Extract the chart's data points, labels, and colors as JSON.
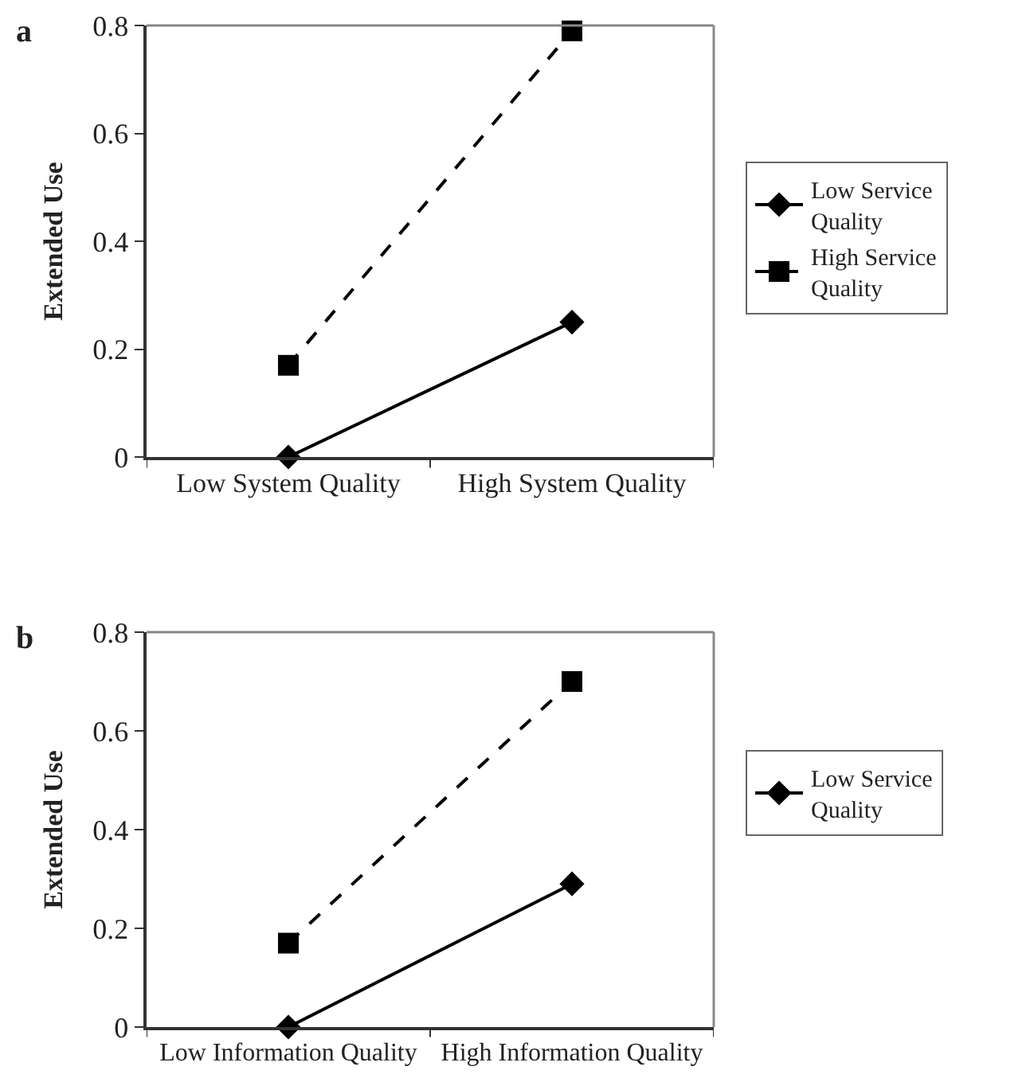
{
  "chart_data": [
    {
      "type": "line",
      "title": "a",
      "ylabel": "Extended Use",
      "categories": [
        "Low System Quality",
        "High System Quality"
      ],
      "ylim": [
        0,
        0.8
      ],
      "yticks": [
        0,
        0.2,
        0.4,
        0.6,
        0.8
      ],
      "grid": false,
      "legend": "right",
      "series": [
        {
          "name": "Low Service Quality",
          "color": "#000000",
          "values": [
            0,
            0.25
          ],
          "marker": "diamond",
          "line_style": "solid"
        },
        {
          "name": "High Service Quality",
          "color": "#000000",
          "values": [
            0.17,
            0.79
          ],
          "marker": "square",
          "line_style": "dashed"
        }
      ]
    },
    {
      "type": "line",
      "title": "b",
      "ylabel": "Extended Use",
      "categories": [
        "Low Information Quality",
        "High Information Quality"
      ],
      "ylim": [
        0,
        0.8
      ],
      "yticks": [
        0,
        0.2,
        0.4,
        0.6,
        0.8
      ],
      "grid": false,
      "legend": "right",
      "series": [
        {
          "name": "Low Service Quality",
          "color": "#000000",
          "values": [
            0,
            0.29
          ],
          "marker": "diamond",
          "line_style": "solid"
        },
        {
          "color": "#000000",
          "values": [
            0.17,
            0.7
          ],
          "marker": "square",
          "line_style": "dashed"
        }
      ]
    }
  ]
}
